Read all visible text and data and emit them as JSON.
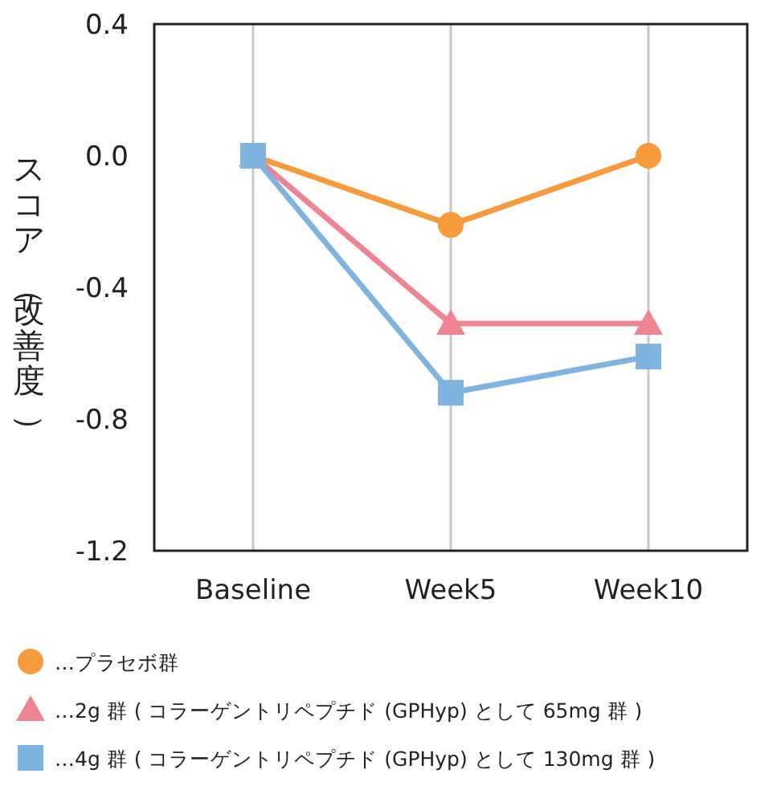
{
  "chart_data": {
    "type": "line",
    "ylabel": "スコア（改善度）",
    "categories": [
      "Baseline",
      "Week5",
      "Week10"
    ],
    "ylim": [
      -1.2,
      0.4
    ],
    "yticks": [
      0.4,
      {
        "value": 0,
        "label": "0.0"
      },
      -0.4,
      -0.8,
      -1.2
    ],
    "grid": "x",
    "legend": "bottom",
    "series": [
      {
        "name": "…プラセボ群",
        "color": "#f59b3c",
        "marker": "circle",
        "values": [
          0,
          -0.21,
          0
        ]
      },
      {
        "name": "…2g 群 ( コラーゲントリペプチド (GPHyp) として 65mg 群 )",
        "color": "#ee8393",
        "marker": "triangle",
        "values": [
          0,
          -0.51,
          -0.51
        ]
      },
      {
        "name": "…4g 群 ( コラーゲントリペプチド (GPHyp) として 130mg 群 )",
        "color": "#7fb3e0",
        "marker": "square",
        "values": [
          0,
          -0.72,
          -0.61
        ]
      }
    ]
  }
}
